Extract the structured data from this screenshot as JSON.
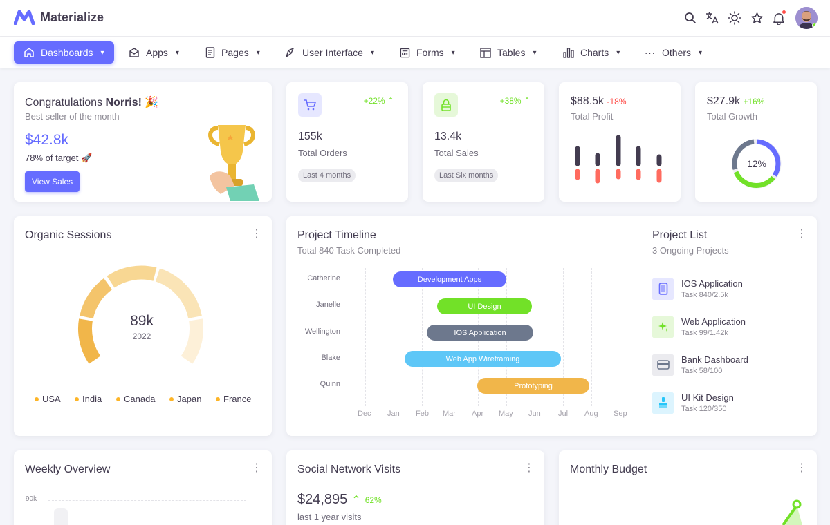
{
  "brand": {
    "name": "Materialize"
  },
  "nav": [
    {
      "label": "Dashboards",
      "icon": "home-icon"
    },
    {
      "label": "Apps",
      "icon": "mail-icon"
    },
    {
      "label": "Pages",
      "icon": "file-icon"
    },
    {
      "label": "User Interface",
      "icon": "brush-icon"
    },
    {
      "label": "Forms",
      "icon": "form-icon"
    },
    {
      "label": "Tables",
      "icon": "table-icon"
    },
    {
      "label": "Charts",
      "icon": "chart-icon"
    },
    {
      "label": "Others",
      "icon": "dots-icon"
    }
  ],
  "congrats": {
    "title_prefix": "Congratulations ",
    "title_name": "Norris!",
    "title_emoji": "🎉",
    "subtitle": "Best seller of the month",
    "amount": "$42.8k",
    "target_text": "78% of target",
    "target_emoji": "🚀",
    "button": "View Sales"
  },
  "orders": {
    "change": "+22%",
    "value": "155k",
    "label": "Total Orders",
    "chip": "Last 4 months"
  },
  "sales": {
    "change": "+38%",
    "value": "13.4k",
    "label": "Total Sales",
    "chip": "Last Six months"
  },
  "profit": {
    "value": "$88.5k",
    "change": "-18%",
    "label": "Total Profit"
  },
  "growth": {
    "value": "$27.9k",
    "change": "+16%",
    "label": "Total Growth",
    "donut": "12%"
  },
  "organic": {
    "title": "Organic Sessions",
    "value": "89k",
    "year": "2022",
    "legend": [
      "USA",
      "India",
      "Canada",
      "Japan",
      "France"
    ]
  },
  "timeline": {
    "title": "Project Timeline",
    "subtitle": "Total 840 Task Completed",
    "names": [
      "Catherine",
      "Janelle",
      "Wellington",
      "Blake",
      "Quinn"
    ],
    "bars": [
      "Development Apps",
      "UI Design",
      "IOS Application",
      "Web App Wireframing",
      "Prototyping"
    ],
    "months": [
      "Dec",
      "Jan",
      "Feb",
      "Mar",
      "Apr",
      "May",
      "Jun",
      "Jul",
      "Aug",
      "Sep"
    ]
  },
  "projects": {
    "title": "Project List",
    "subtitle": "3 Ongoing Projects",
    "items": [
      {
        "name": "IOS Application",
        "task": "Task 840/2.5k"
      },
      {
        "name": "Web Application",
        "task": "Task 99/1.42k"
      },
      {
        "name": "Bank Dashboard",
        "task": "Task 58/100"
      },
      {
        "name": "UI Kit Design",
        "task": "Task 120/350"
      }
    ]
  },
  "weekly": {
    "title": "Weekly Overview",
    "ytick": "90k"
  },
  "social": {
    "title": "Social Network Visits",
    "amount": "$24,895",
    "change": "62%",
    "subtitle": "last 1 year visits"
  },
  "budget": {
    "title": "Monthly Budget"
  },
  "colors": {
    "primary": "#666cff",
    "success": "#72e128",
    "warning": "#fdb528",
    "danger": "#ff4d49",
    "info": "#26c6f9",
    "secondary": "#6d788d"
  }
}
